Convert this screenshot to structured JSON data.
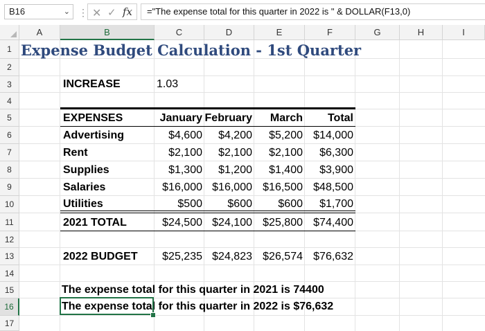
{
  "formula_bar": {
    "name_box": "B16",
    "formula": "=\"The expense total for this quarter in 2022 is \" & DOLLAR(F13,0)",
    "fx_label": "fx"
  },
  "columns": [
    "A",
    "B",
    "C",
    "D",
    "E",
    "F",
    "G",
    "H",
    "I"
  ],
  "rows": [
    "1",
    "2",
    "3",
    "4",
    "5",
    "6",
    "7",
    "8",
    "9",
    "10",
    "11",
    "12",
    "13",
    "14",
    "15",
    "16",
    "17"
  ],
  "sheet": {
    "title": "Expense Budget Calculation - 1st Quarter",
    "increase_label": "INCREASE",
    "increase_value": "1.03",
    "headers": [
      "EXPENSES",
      "January",
      "February",
      "March",
      "Total"
    ],
    "expenses": [
      {
        "name": "Advertising",
        "values": [
          "$4,600",
          "$4,200",
          "$5,200",
          "$14,000"
        ]
      },
      {
        "name": "Rent",
        "values": [
          "$2,100",
          "$2,100",
          "$2,100",
          "$6,300"
        ]
      },
      {
        "name": "Supplies",
        "values": [
          "$1,300",
          "$1,200",
          "$1,400",
          "$3,900"
        ]
      },
      {
        "name": "Salaries",
        "values": [
          "$16,000",
          "$16,000",
          "$16,500",
          "$48,500"
        ]
      },
      {
        "name": "Utilities",
        "values": [
          "$500",
          "$600",
          "$600",
          "$1,700"
        ]
      }
    ],
    "total_2021": {
      "name": "2021 TOTAL",
      "values": [
        "$24,500",
        "$24,100",
        "$25,800",
        "$74,400"
      ]
    },
    "budget_2022": {
      "name": "2022 BUDGET",
      "values": [
        "$25,235",
        "$24,823",
        "$26,574",
        "$76,632"
      ]
    },
    "sentence_2021": "The expense total for this quarter in 2021 is 74400",
    "sentence_2022": "The expense total for this quarter in 2022 is $76,632"
  },
  "colors": {
    "accent": "#217346",
    "title": "#2f4a7d"
  }
}
